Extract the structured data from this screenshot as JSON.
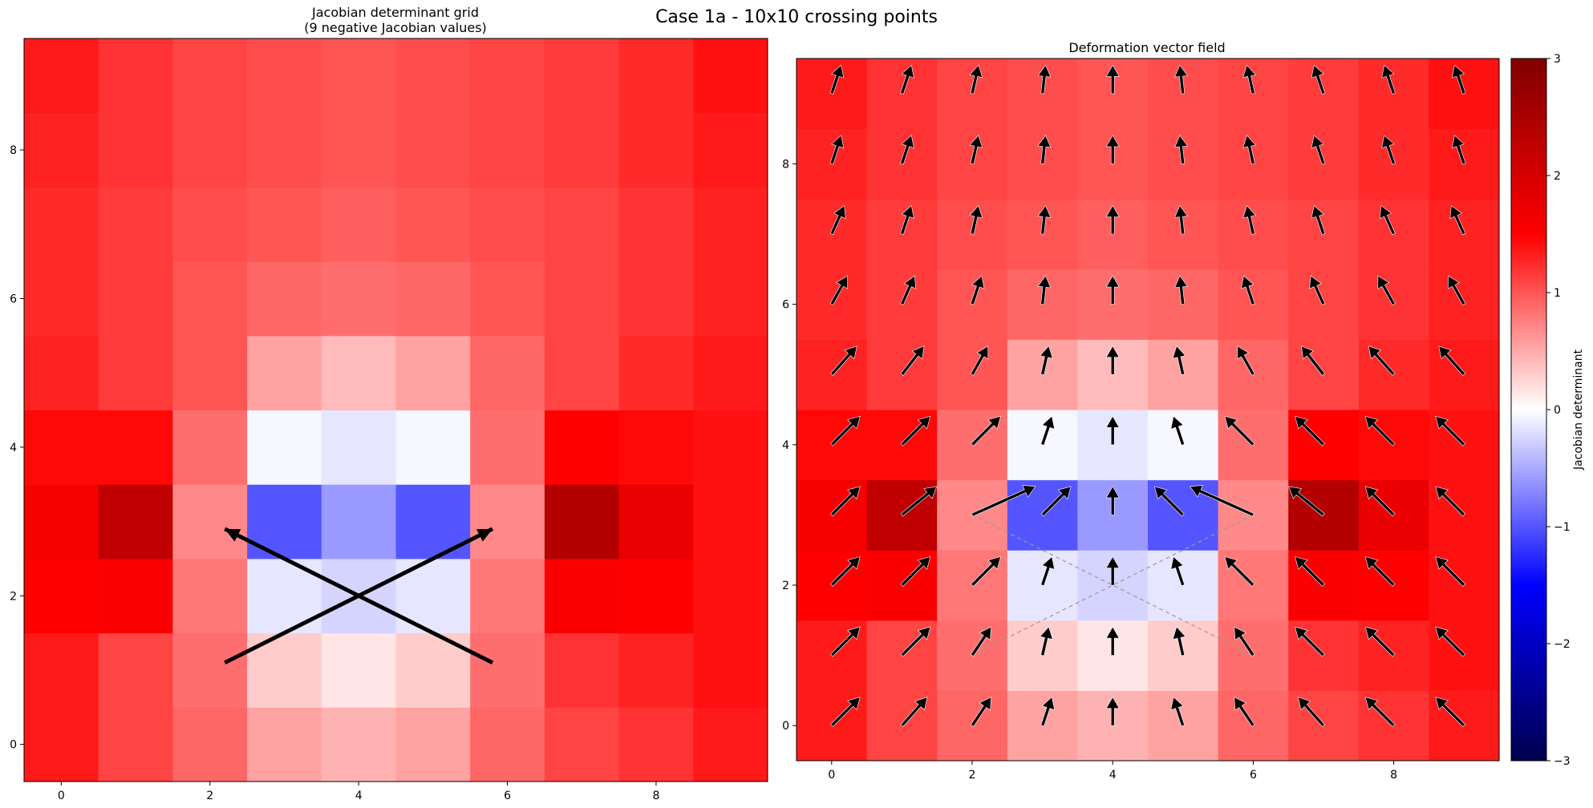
{
  "figure": {
    "suptitle": "Case 1a - 10x10 crossing points"
  },
  "chart_data": [
    {
      "type": "heatmap",
      "title": "Jacobian determinant grid",
      "subtitle": "(9 negative Jacobian values)",
      "x_ticks": [
        "0",
        "2",
        "4",
        "6",
        "8"
      ],
      "y_ticks": [
        "0",
        "2",
        "4",
        "6",
        "8"
      ],
      "xlim": [
        -0.5,
        9.5
      ],
      "ylim": [
        9.5,
        -0.5
      ],
      "values": [
        [
          1.35,
          1.1,
          0.9,
          0.55,
          0.45,
          0.55,
          0.9,
          1.1,
          1.2,
          1.35
        ],
        [
          1.35,
          1.1,
          0.85,
          0.3,
          0.15,
          0.3,
          0.85,
          1.2,
          1.3,
          1.4
        ],
        [
          1.5,
          1.55,
          0.8,
          -0.15,
          -0.25,
          -0.15,
          0.8,
          1.55,
          1.5,
          1.4
        ],
        [
          1.6,
          2.25,
          0.7,
          -1.0,
          -0.6,
          -1.0,
          0.7,
          2.4,
          1.75,
          1.4
        ],
        [
          1.45,
          1.45,
          0.85,
          -0.05,
          -0.15,
          -0.05,
          0.85,
          1.5,
          1.45,
          1.4
        ],
        [
          1.3,
          1.15,
          1.0,
          0.55,
          0.4,
          0.55,
          0.9,
          1.1,
          1.25,
          1.35
        ],
        [
          1.25,
          1.15,
          1.0,
          0.9,
          0.85,
          0.9,
          1.0,
          1.1,
          1.2,
          1.3
        ],
        [
          1.25,
          1.15,
          1.05,
          1.0,
          0.95,
          1.0,
          1.05,
          1.1,
          1.2,
          1.3
        ],
        [
          1.3,
          1.2,
          1.1,
          1.05,
          1.0,
          1.05,
          1.1,
          1.15,
          1.25,
          1.35
        ],
        [
          1.35,
          1.2,
          1.1,
          1.05,
          1.0,
          1.05,
          1.1,
          1.15,
          1.25,
          1.4
        ]
      ],
      "crossing_lines": [
        {
          "from": [
            2.2,
            1.1
          ],
          "to": [
            5.8,
            2.9
          ]
        },
        {
          "from": [
            5.8,
            1.1
          ],
          "to": [
            2.2,
            2.9
          ]
        }
      ],
      "grid": false
    },
    {
      "type": "heatmap",
      "title": "Deformation vector field",
      "x_ticks": [
        "0",
        "2",
        "4",
        "6",
        "8"
      ],
      "y_ticks": [
        "0",
        "2",
        "4",
        "6",
        "8"
      ],
      "xlim": [
        -0.5,
        9.5
      ],
      "ylim": [
        9.5,
        -0.5
      ],
      "values": [
        [
          1.35,
          1.1,
          0.9,
          0.55,
          0.45,
          0.55,
          0.9,
          1.1,
          1.2,
          1.35
        ],
        [
          1.35,
          1.1,
          0.85,
          0.3,
          0.15,
          0.3,
          0.85,
          1.2,
          1.3,
          1.4
        ],
        [
          1.5,
          1.55,
          0.8,
          -0.15,
          -0.25,
          -0.15,
          0.8,
          1.55,
          1.5,
          1.4
        ],
        [
          1.6,
          2.25,
          0.7,
          -1.0,
          -0.6,
          -1.0,
          0.7,
          2.4,
          1.75,
          1.4
        ],
        [
          1.45,
          1.45,
          0.85,
          -0.05,
          -0.15,
          -0.05,
          0.85,
          1.5,
          1.45,
          1.4
        ],
        [
          1.3,
          1.15,
          1.0,
          0.55,
          0.4,
          0.55,
          0.9,
          1.1,
          1.25,
          1.35
        ],
        [
          1.25,
          1.15,
          1.0,
          0.9,
          0.85,
          0.9,
          1.0,
          1.1,
          1.2,
          1.3
        ],
        [
          1.25,
          1.15,
          1.05,
          1.0,
          0.95,
          1.0,
          1.05,
          1.1,
          1.2,
          1.3
        ],
        [
          1.3,
          1.2,
          1.1,
          1.05,
          1.0,
          1.05,
          1.1,
          1.15,
          1.25,
          1.35
        ],
        [
          1.35,
          1.2,
          1.1,
          1.05,
          1.0,
          1.05,
          1.1,
          1.15,
          1.25,
          1.4
        ]
      ],
      "vectors": {
        "u": [
          [
            0.45,
            0.4,
            0.3,
            0.15,
            0.0,
            -0.15,
            -0.3,
            -0.4,
            -0.45,
            -0.45
          ],
          [
            0.45,
            0.45,
            0.3,
            0.1,
            0.0,
            -0.1,
            -0.3,
            -0.45,
            -0.45,
            -0.45
          ],
          [
            0.45,
            0.45,
            0.45,
            0.15,
            0.0,
            -0.15,
            -0.45,
            -0.45,
            -0.45,
            -0.45
          ],
          [
            0.45,
            0.55,
            1.0,
            0.45,
            0.0,
            -0.45,
            -1.0,
            -0.55,
            -0.45,
            -0.45
          ],
          [
            0.45,
            0.45,
            0.45,
            0.15,
            0.0,
            -0.15,
            -0.45,
            -0.45,
            -0.45,
            -0.45
          ],
          [
            0.4,
            0.35,
            0.25,
            0.1,
            0.0,
            -0.1,
            -0.25,
            -0.35,
            -0.4,
            -0.4
          ],
          [
            0.25,
            0.2,
            0.15,
            0.05,
            0.0,
            -0.05,
            -0.15,
            -0.2,
            -0.25,
            -0.25
          ],
          [
            0.2,
            0.15,
            0.1,
            0.05,
            0.0,
            -0.05,
            -0.1,
            -0.15,
            -0.2,
            -0.2
          ],
          [
            0.15,
            0.15,
            0.1,
            0.05,
            0.0,
            -0.05,
            -0.1,
            -0.15,
            -0.15,
            -0.15
          ],
          [
            0.15,
            0.15,
            0.1,
            0.05,
            0.0,
            -0.05,
            -0.1,
            -0.15,
            -0.15,
            -0.15
          ]
        ],
        "v": [
          [
            0.45,
            0.45,
            0.45,
            0.45,
            0.45,
            0.45,
            0.45,
            0.45,
            0.45,
            0.45
          ],
          [
            0.45,
            0.45,
            0.45,
            0.45,
            0.45,
            0.45,
            0.45,
            0.45,
            0.45,
            0.45
          ],
          [
            0.45,
            0.45,
            0.45,
            0.45,
            0.45,
            0.45,
            0.45,
            0.45,
            0.45,
            0.45
          ],
          [
            0.45,
            0.45,
            0.45,
            0.45,
            0.45,
            0.45,
            0.45,
            0.45,
            0.45,
            0.45
          ],
          [
            0.45,
            0.45,
            0.45,
            0.45,
            0.45,
            0.45,
            0.45,
            0.45,
            0.45,
            0.45
          ],
          [
            0.45,
            0.45,
            0.45,
            0.45,
            0.45,
            0.45,
            0.45,
            0.45,
            0.45,
            0.45
          ],
          [
            0.45,
            0.45,
            0.45,
            0.45,
            0.45,
            0.45,
            0.45,
            0.45,
            0.45,
            0.45
          ],
          [
            0.45,
            0.45,
            0.45,
            0.45,
            0.45,
            0.45,
            0.45,
            0.45,
            0.45,
            0.45
          ],
          [
            0.45,
            0.45,
            0.45,
            0.45,
            0.45,
            0.45,
            0.45,
            0.45,
            0.45,
            0.45
          ],
          [
            0.45,
            0.45,
            0.45,
            0.45,
            0.45,
            0.45,
            0.45,
            0.45,
            0.45,
            0.45
          ]
        ]
      },
      "crossing_lines": [
        {
          "from": [
            2,
            1
          ],
          "to": [
            6,
            3
          ]
        },
        {
          "from": [
            6,
            1
          ],
          "to": [
            2,
            3
          ]
        }
      ],
      "grid": false
    }
  ],
  "colorbar": {
    "label": "Jacobian determinant",
    "range": [
      -3,
      3
    ],
    "ticks": [
      "3",
      "2",
      "1",
      "0",
      "−1",
      "−2",
      "−3"
    ],
    "colormap": "seismic"
  }
}
